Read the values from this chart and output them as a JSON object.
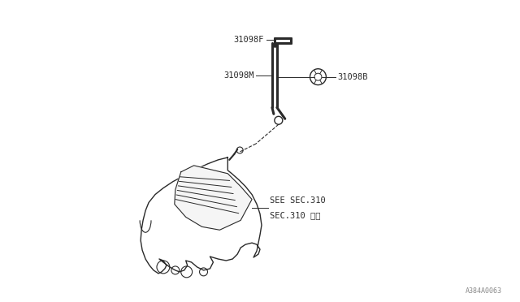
{
  "bg_color": "#ffffff",
  "line_color": "#2a2a2a",
  "text_color": "#2a2a2a",
  "fig_width": 6.4,
  "fig_height": 3.72,
  "watermark": "A384A0063",
  "label_31098F": "31098F",
  "label_31098B": "31098B",
  "label_31098M": "31098M",
  "label_sec1": "SEE SEC.310",
  "label_sec2": "SEC.310 参照",
  "pipe_lw": 2.2,
  "body_lw": 1.0
}
